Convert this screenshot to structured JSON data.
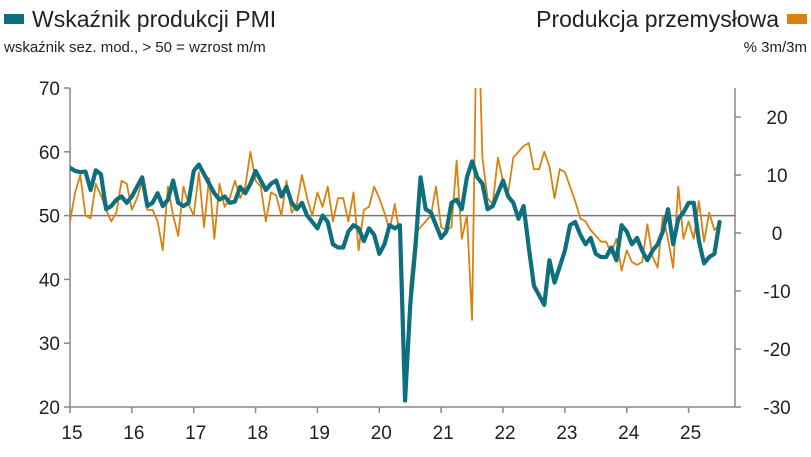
{
  "legend": {
    "left": {
      "label": "Wskaźnik produkcji PMI",
      "subtitle": "wskaźnik sez. mod., > 50 = wzrost m/m",
      "color": "#0e6f7e"
    },
    "right": {
      "label": "Produkcja przemysłowa",
      "subtitle": "% 3m/3m",
      "color": "#d9820f"
    }
  },
  "chart_data": {
    "type": "line",
    "x_ticks": [
      "15",
      "16",
      "17",
      "18",
      "19",
      "20",
      "21",
      "22",
      "23",
      "24",
      "25"
    ],
    "y_left": {
      "ylim": [
        20,
        70
      ],
      "ticks": [
        "70",
        "60",
        "50",
        "40",
        "30",
        "20"
      ]
    },
    "y_right": {
      "ylim": [
        -30,
        25
      ],
      "ticks": [
        "20",
        "10",
        "0",
        "-10",
        "-20",
        "-30"
      ]
    },
    "reference_line": {
      "axis": "left",
      "value": 50
    },
    "x_range": [
      2015.0,
      2025.75
    ],
    "series": [
      {
        "name": "Wskaźnik produkcji PMI",
        "axis": "left",
        "color": "#0e6f7e",
        "start": 2015.0,
        "values": [
          57.5,
          57.0,
          56.8,
          56.9,
          54.0,
          57.1,
          56.5,
          51.0,
          51.5,
          52.5,
          53.0,
          52.0,
          53.0,
          54.5,
          56.0,
          51.5,
          52.0,
          53.5,
          51.5,
          52.5,
          55.5,
          52.0,
          51.5,
          52.0,
          57.0,
          58.0,
          56.5,
          55.0,
          53.5,
          52.5,
          53.0,
          52.0,
          52.2,
          54.5,
          53.5,
          55.0,
          57.0,
          55.5,
          54.0,
          55.0,
          55.5,
          53.0,
          54.5,
          52.0,
          51.0,
          52.0,
          50.0,
          49.0,
          48.0,
          50.0,
          49.0,
          45.5,
          45.0,
          45.0,
          47.5,
          48.5,
          48.0,
          46.0,
          48.0,
          47.0,
          44.0,
          45.5,
          48.5,
          48.0,
          48.5,
          21.0,
          36.0,
          45.0,
          56.0,
          51.0,
          50.5,
          48.5,
          46.5,
          47.5,
          52.0,
          52.5,
          51.0,
          56.0,
          58.5,
          56.0,
          55.0,
          51.0,
          51.5,
          53.5,
          55.5,
          53.0,
          52.0,
          49.5,
          51.5,
          45.0,
          39.0,
          37.5,
          36.0,
          43.0,
          39.5,
          42.0,
          44.5,
          48.5,
          49.0,
          47.0,
          45.5,
          46.5,
          44.0,
          43.5,
          43.5,
          45.0,
          43.0,
          48.5,
          47.5,
          45.5,
          46.5,
          44.5,
          43.0,
          44.5,
          45.5,
          47.5,
          51.0,
          45.5,
          49.5,
          50.5,
          52.0,
          52.0,
          46.0,
          42.5,
          43.5,
          44.0,
          49.0
        ],
        "line_width": 4.2
      },
      {
        "name": "Produkcja przemysłowa",
        "axis": "right",
        "color": "#d9820f",
        "start": 2015.0,
        "values": [
          2.0,
          7.0,
          10.0,
          3.0,
          2.5,
          8.5,
          6.5,
          4.0,
          2.0,
          3.5,
          9.0,
          8.5,
          4.0,
          6.0,
          9.0,
          4.0,
          4.0,
          2.0,
          -3.0,
          8.0,
          3.0,
          -0.5,
          8.0,
          5.0,
          3.0,
          10.5,
          1.0,
          9.5,
          -1.0,
          8.5,
          4.5,
          6.0,
          9.0,
          6.0,
          8.0,
          14.0,
          9.0,
          8.0,
          2.0,
          7.0,
          6.5,
          3.0,
          9.0,
          3.5,
          5.0,
          10.0,
          6.0,
          3.0,
          7.0,
          4.5,
          8.0,
          2.0,
          6.0,
          6.0,
          2.0,
          7.0,
          -3.0,
          4.0,
          4.5,
          8.0,
          6.0,
          3.5,
          0.5,
          5.0,
          -0.5,
          -28.0,
          -9.0,
          0.0,
          1.0,
          2.0,
          3.0,
          8.0,
          1.0,
          0.5,
          1.0,
          12.5,
          -1.0,
          3.0,
          -15.0,
          45.0,
          13.0,
          6.0,
          5.0,
          13.0,
          9.0,
          7.0,
          13.0,
          14.0,
          15.0,
          15.5,
          11.0,
          11.0,
          14.0,
          11.5,
          6.0,
          11.0,
          10.5,
          8.0,
          5.5,
          2.5,
          2.0,
          0.5,
          -0.5,
          -1.5,
          -1.5,
          -3.5,
          -1.0,
          -6.5,
          -3.0,
          -5.0,
          -5.5,
          -5.0,
          1.5,
          -4.0,
          -6.0,
          3.0,
          -1.0,
          -6.0,
          8.0,
          -1.0,
          2.0,
          -1.0,
          5.5,
          -1.5,
          3.5,
          0.5,
          1.5
        ]
      }
    ]
  }
}
